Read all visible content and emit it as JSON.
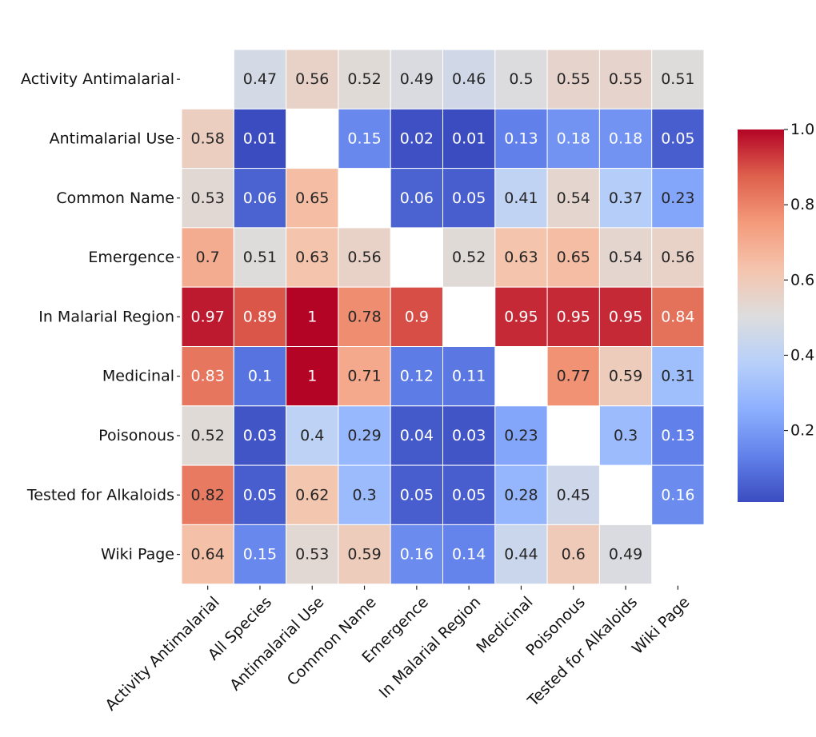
{
  "chart_data": {
    "type": "heatmap",
    "title": "",
    "xlabel": "",
    "ylabel": "",
    "colormap": "coolwarm",
    "vmin": 0.01,
    "vmax": 1.0,
    "row_labels": [
      "Activity Antimalarial",
      "Antimalarial Use",
      "Common Name",
      "Emergence",
      "In Malarial Region",
      "Medicinal",
      "Poisonous",
      "Tested for Alkaloids",
      "Wiki Page"
    ],
    "col_labels": [
      "Activity Antimalarial",
      "All Species",
      "Antimalarial Use",
      "Common Name",
      "Emergence",
      "In Malarial Region",
      "Medicinal",
      "Poisonous",
      "Tested for Alkaloids",
      "Wiki Page"
    ],
    "values": [
      [
        null,
        0.47,
        0.56,
        0.52,
        0.49,
        0.46,
        0.5,
        0.55,
        0.55,
        0.51
      ],
      [
        0.58,
        0.01,
        null,
        0.15,
        0.02,
        0.01,
        0.13,
        0.18,
        0.18,
        0.05
      ],
      [
        0.53,
        0.06,
        0.65,
        null,
        0.06,
        0.05,
        0.41,
        0.54,
        0.37,
        0.23
      ],
      [
        0.7,
        0.51,
        0.63,
        0.56,
        null,
        0.52,
        0.63,
        0.65,
        0.54,
        0.56
      ],
      [
        0.97,
        0.89,
        1,
        0.78,
        0.9,
        null,
        0.95,
        0.95,
        0.95,
        0.84
      ],
      [
        0.83,
        0.1,
        1,
        0.71,
        0.12,
        0.11,
        null,
        0.77,
        0.59,
        0.31
      ],
      [
        0.52,
        0.03,
        0.4,
        0.29,
        0.04,
        0.03,
        0.23,
        null,
        0.3,
        0.13
      ],
      [
        0.82,
        0.05,
        0.62,
        0.3,
        0.05,
        0.05,
        0.28,
        0.45,
        null,
        0.16
      ],
      [
        0.64,
        0.15,
        0.53,
        0.59,
        0.16,
        0.14,
        0.44,
        0.6,
        0.49,
        null
      ]
    ],
    "annotations": true,
    "colorbar": {
      "ticks": [
        0.2,
        0.4,
        0.6,
        0.8,
        1.0
      ],
      "tick_labels": [
        "0.2",
        "0.4",
        "0.6",
        "0.8",
        "1.0"
      ],
      "placement": "right"
    },
    "x_tick_rotation": "45-degree"
  }
}
